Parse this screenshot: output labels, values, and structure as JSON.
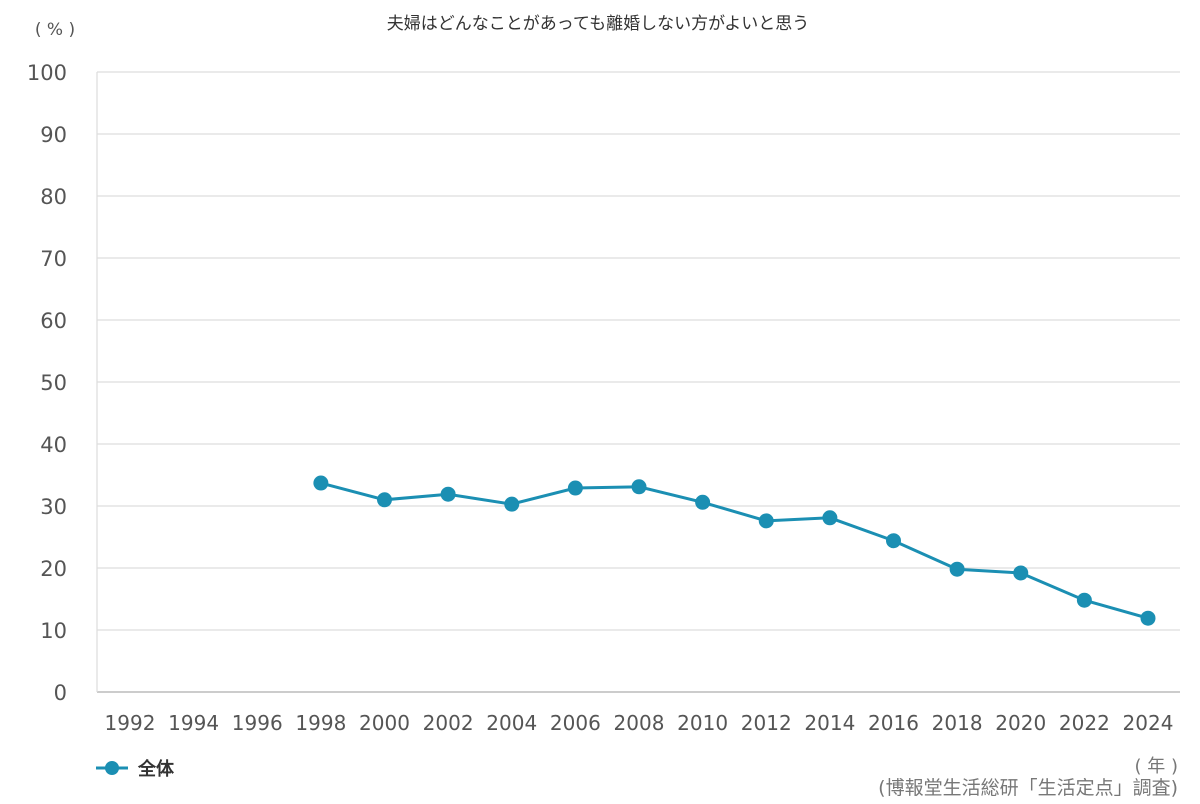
{
  "chart_data": {
    "type": "line",
    "title": "夫婦はどんなことがあっても離婚しない方がよいと思う",
    "ylabel": "( % )",
    "xlabel": "( 年 )",
    "source": "(博報堂生活総研「生活定点」調査)",
    "ylim": [
      0,
      100
    ],
    "yticks": [
      0,
      10,
      20,
      30,
      40,
      50,
      60,
      70,
      80,
      90,
      100
    ],
    "categories": [
      "1992",
      "1994",
      "1996",
      "1998",
      "2000",
      "2002",
      "2004",
      "2006",
      "2008",
      "2010",
      "2012",
      "2014",
      "2016",
      "2018",
      "2020",
      "2022",
      "2024"
    ],
    "grid": true,
    "legend_position": "bottom-left",
    "series": [
      {
        "name": "全体",
        "color": "#1b8fb3",
        "values": [
          null,
          null,
          null,
          33.7,
          31.0,
          31.9,
          30.3,
          32.9,
          33.1,
          30.6,
          27.6,
          28.1,
          24.4,
          19.8,
          19.2,
          14.8,
          11.9
        ]
      }
    ]
  }
}
